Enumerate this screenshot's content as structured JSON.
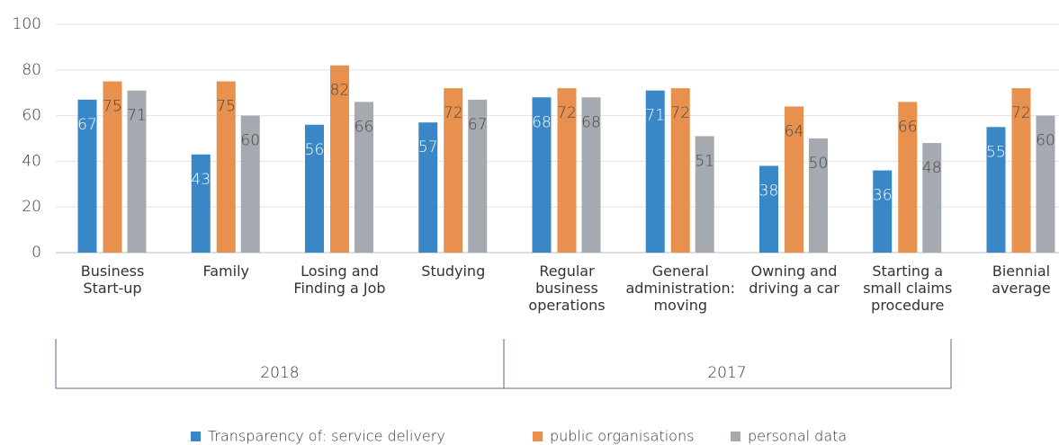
{
  "chart_data": {
    "type": "bar",
    "categories": [
      "Business\nStart-up",
      "Family",
      "Losing and\nFinding a Job",
      "Studying",
      "Regular\nbusiness\noperations",
      "General\nadministration:\nmoving",
      "Owning and\ndriving a car",
      "Starting a\nsmall claims\nprocedure",
      "Biennial\naverage"
    ],
    "series": [
      {
        "name": "Transparency of: service delivery",
        "color": "#3a87c8",
        "values": [
          67,
          43,
          56,
          57,
          68,
          71,
          38,
          36,
          55
        ]
      },
      {
        "name": "public organisations",
        "color": "#e8914f",
        "values": [
          75,
          75,
          82,
          72,
          72,
          72,
          64,
          66,
          72
        ]
      },
      {
        "name": "personal data",
        "color": "#a5a9b0",
        "values": [
          71,
          60,
          66,
          67,
          68,
          51,
          50,
          48,
          60
        ]
      }
    ],
    "group_labels": [
      "2018",
      "2017"
    ],
    "ylim": [
      0,
      100
    ],
    "yticks": [
      0,
      20,
      40,
      60,
      80,
      100
    ],
    "grid": true,
    "legend": "bottom"
  }
}
